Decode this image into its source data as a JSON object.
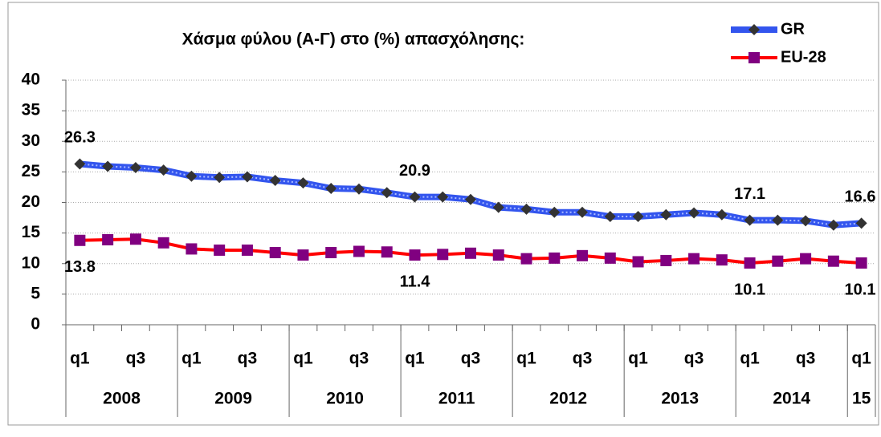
{
  "chart_data": {
    "type": "line",
    "title": "Χάσμα φύλου (Α-Γ) στο (%) απασχόλησης:",
    "categories": [
      "q1",
      null,
      "q3",
      null,
      "q1",
      null,
      "q3",
      null,
      "q1",
      null,
      "q3",
      null,
      "q1",
      null,
      "q3",
      null,
      "q1",
      null,
      "q3",
      null,
      "q1",
      null,
      "q3",
      null,
      "q1",
      null,
      "q3",
      null,
      "q1"
    ],
    "x_groups": [
      "2008",
      "2009",
      "2010",
      "2011",
      "2012",
      "2013",
      "2014",
      "15"
    ],
    "x_group_sizes": [
      4,
      4,
      4,
      4,
      4,
      4,
      4,
      1
    ],
    "series": [
      {
        "name": "GR",
        "color": "#3355ee",
        "marker": "diamond",
        "marker_color": "#333333",
        "label_color": "#2e75b6",
        "label_side": "above",
        "data_labels": [
          0,
          12,
          24,
          28
        ],
        "values": [
          26.3,
          25.9,
          25.7,
          25.3,
          24.3,
          24.1,
          24.2,
          23.6,
          23.2,
          22.3,
          22.2,
          21.6,
          20.9,
          20.9,
          20.5,
          19.2,
          18.9,
          18.4,
          18.4,
          17.7,
          17.7,
          18.0,
          18.3,
          18.0,
          17.1,
          17.1,
          17.0,
          16.3,
          16.6
        ]
      },
      {
        "name": "EU-28",
        "color": "#ff0000",
        "marker": "square",
        "marker_color": "#800080",
        "label_color": "#000000",
        "label_side": "below",
        "data_labels": [
          0,
          12,
          24,
          28
        ],
        "values": [
          13.8,
          13.9,
          14.0,
          13.4,
          12.4,
          12.2,
          12.2,
          11.8,
          11.4,
          11.8,
          12.0,
          11.9,
          11.4,
          11.5,
          11.7,
          11.4,
          10.8,
          10.9,
          11.3,
          10.9,
          10.3,
          10.5,
          10.8,
          10.6,
          10.1,
          10.4,
          10.8,
          10.4,
          10.1
        ]
      }
    ],
    "ylim": [
      0,
      40
    ],
    "yticks": [
      0,
      5,
      10,
      15,
      20,
      25,
      30,
      35,
      40
    ],
    "grid": true,
    "legend": "top-right"
  }
}
